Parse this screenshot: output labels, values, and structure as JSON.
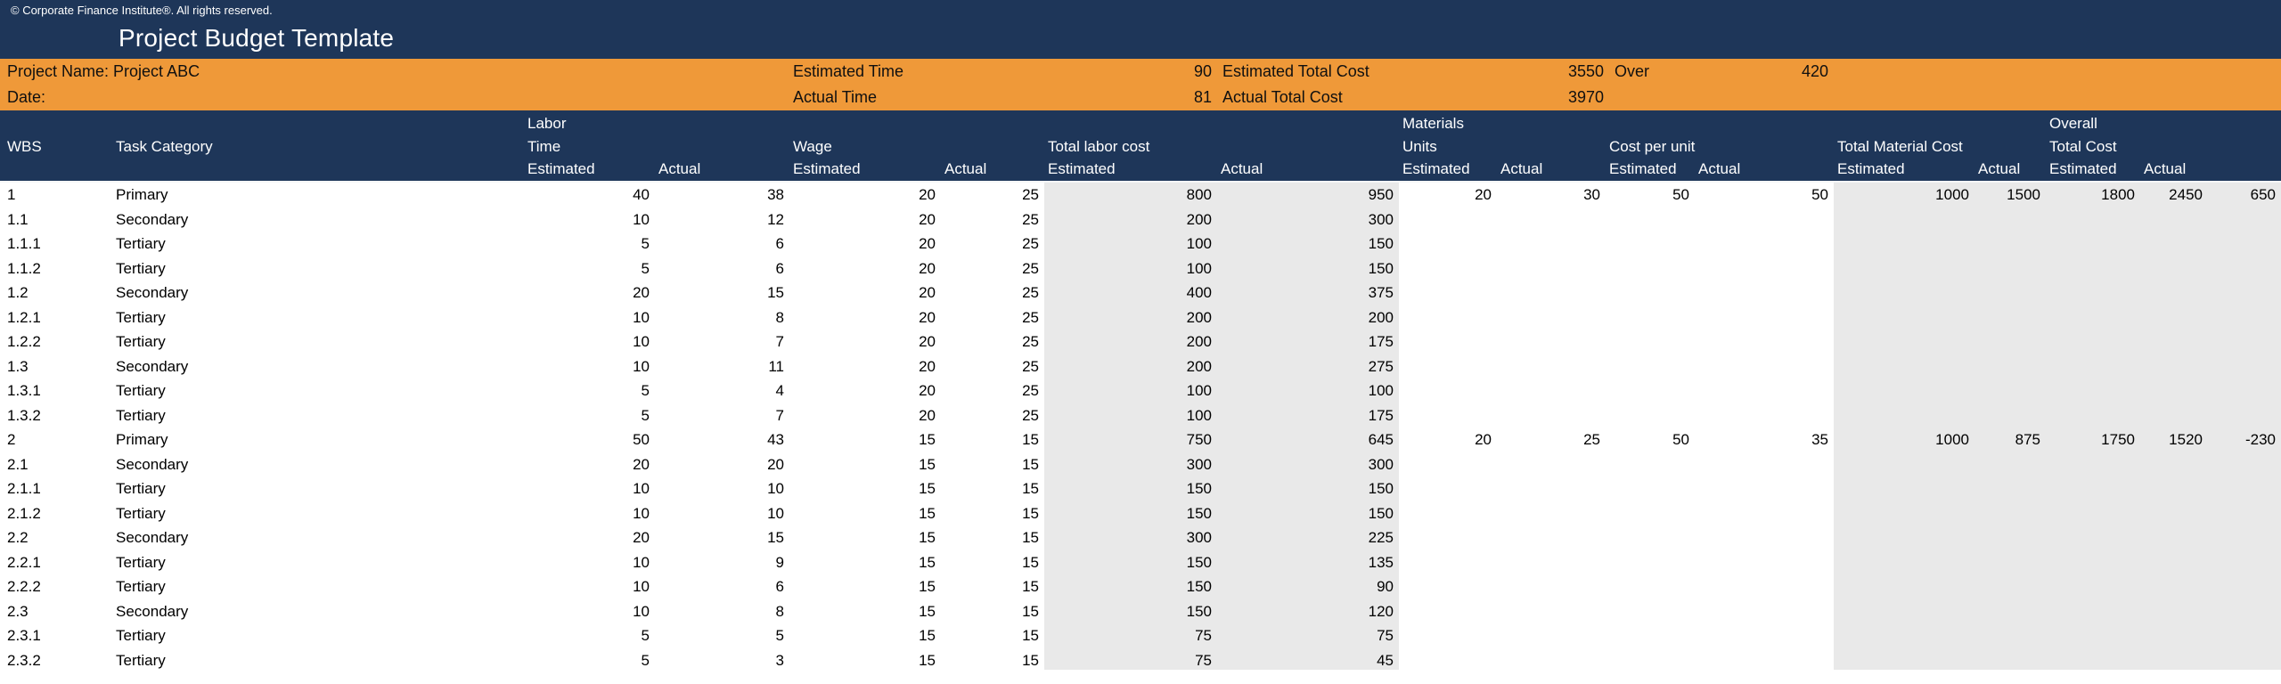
{
  "window": {
    "copyright": "© Corporate Finance Institute®. All rights reserved.",
    "title": "Project Budget Template"
  },
  "info_band": {
    "project_name_label": "Project Name: Project ABC",
    "date_label": "Date:",
    "estimated_time_label": "Estimated Time",
    "estimated_time_value": "90",
    "actual_time_label": "Actual Time",
    "actual_time_value": "81",
    "estimated_total_cost_label": "Estimated Total Cost",
    "estimated_total_cost_value": "3550",
    "over_label": "Over",
    "over_value": "420",
    "actual_total_cost_label": "Actual Total Cost",
    "actual_total_cost_value": "3970"
  },
  "table": {
    "header": {
      "wbs": "WBS",
      "task_category": "Task Category",
      "labor_time": [
        "Labor",
        "Time"
      ],
      "wage": "Wage",
      "total_labor_cost": "Total labor cost",
      "materials_units": [
        "Materials",
        "Units"
      ],
      "cost_per_unit": "Cost per unit",
      "total_material_cost": "Total Material Cost",
      "overall_total_cost": [
        "Overall",
        "Total Cost"
      ],
      "estimated": "Estimated",
      "actual": "Actual"
    },
    "rows": [
      [
        "1",
        "Primary",
        "40",
        "38",
        "20",
        "25",
        "800",
        "950",
        "20",
        "30",
        "50",
        "50",
        "1000",
        "1500",
        "1800",
        "2450",
        "650"
      ],
      [
        "1.1",
        "Secondary",
        "10",
        "12",
        "20",
        "25",
        "200",
        "300",
        "",
        "",
        "",
        "",
        "",
        "",
        "",
        "",
        ""
      ],
      [
        "1.1.1",
        "Tertiary",
        "5",
        "6",
        "20",
        "25",
        "100",
        "150",
        "",
        "",
        "",
        "",
        "",
        "",
        "",
        "",
        ""
      ],
      [
        "1.1.2",
        "Tertiary",
        "5",
        "6",
        "20",
        "25",
        "100",
        "150",
        "",
        "",
        "",
        "",
        "",
        "",
        "",
        "",
        ""
      ],
      [
        "1.2",
        "Secondary",
        "20",
        "15",
        "20",
        "25",
        "400",
        "375",
        "",
        "",
        "",
        "",
        "",
        "",
        "",
        "",
        ""
      ],
      [
        "1.2.1",
        "Tertiary",
        "10",
        "8",
        "20",
        "25",
        "200",
        "200",
        "",
        "",
        "",
        "",
        "",
        "",
        "",
        "",
        ""
      ],
      [
        "1.2.2",
        "Tertiary",
        "10",
        "7",
        "20",
        "25",
        "200",
        "175",
        "",
        "",
        "",
        "",
        "",
        "",
        "",
        "",
        ""
      ],
      [
        "1.3",
        "Secondary",
        "10",
        "11",
        "20",
        "25",
        "200",
        "275",
        "",
        "",
        "",
        "",
        "",
        "",
        "",
        "",
        ""
      ],
      [
        "1.3.1",
        "Tertiary",
        "5",
        "4",
        "20",
        "25",
        "100",
        "100",
        "",
        "",
        "",
        "",
        "",
        "",
        "",
        "",
        ""
      ],
      [
        "1.3.2",
        "Tertiary",
        "5",
        "7",
        "20",
        "25",
        "100",
        "175",
        "",
        "",
        "",
        "",
        "",
        "",
        "",
        "",
        ""
      ],
      [
        "2",
        "Primary",
        "50",
        "43",
        "15",
        "15",
        "750",
        "645",
        "20",
        "25",
        "50",
        "35",
        "1000",
        "875",
        "1750",
        "1520",
        "-230"
      ],
      [
        "2.1",
        "Secondary",
        "20",
        "20",
        "15",
        "15",
        "300",
        "300",
        "",
        "",
        "",
        "",
        "",
        "",
        "",
        "",
        ""
      ],
      [
        "2.1.1",
        "Tertiary",
        "10",
        "10",
        "15",
        "15",
        "150",
        "150",
        "",
        "",
        "",
        "",
        "",
        "",
        "",
        "",
        ""
      ],
      [
        "2.1.2",
        "Tertiary",
        "10",
        "10",
        "15",
        "15",
        "150",
        "150",
        "",
        "",
        "",
        "",
        "",
        "",
        "",
        "",
        ""
      ],
      [
        "2.2",
        "Secondary",
        "20",
        "15",
        "15",
        "15",
        "300",
        "225",
        "",
        "",
        "",
        "",
        "",
        "",
        "",
        "",
        ""
      ],
      [
        "2.2.1",
        "Tertiary",
        "10",
        "9",
        "15",
        "15",
        "150",
        "135",
        "",
        "",
        "",
        "",
        "",
        "",
        "",
        "",
        ""
      ],
      [
        "2.2.2",
        "Tertiary",
        "10",
        "6",
        "15",
        "15",
        "150",
        "90",
        "",
        "",
        "",
        "",
        "",
        "",
        "",
        "",
        ""
      ],
      [
        "2.3",
        "Secondary",
        "10",
        "8",
        "15",
        "15",
        "150",
        "120",
        "",
        "",
        "",
        "",
        "",
        "",
        "",
        "",
        ""
      ],
      [
        "2.3.1",
        "Tertiary",
        "5",
        "5",
        "15",
        "15",
        "75",
        "75",
        "",
        "",
        "",
        "",
        "",
        "",
        "",
        "",
        ""
      ],
      [
        "2.3.2",
        "Tertiary",
        "5",
        "3",
        "15",
        "15",
        "75",
        "45",
        "",
        "",
        "",
        "",
        "",
        "",
        "",
        "",
        ""
      ]
    ]
  },
  "colors": {
    "navy": "#1E3659",
    "orange": "#EF9939",
    "gray_band": "#E9E9E9",
    "header_text": "#FFFFFF",
    "data_text": "#000000"
  }
}
